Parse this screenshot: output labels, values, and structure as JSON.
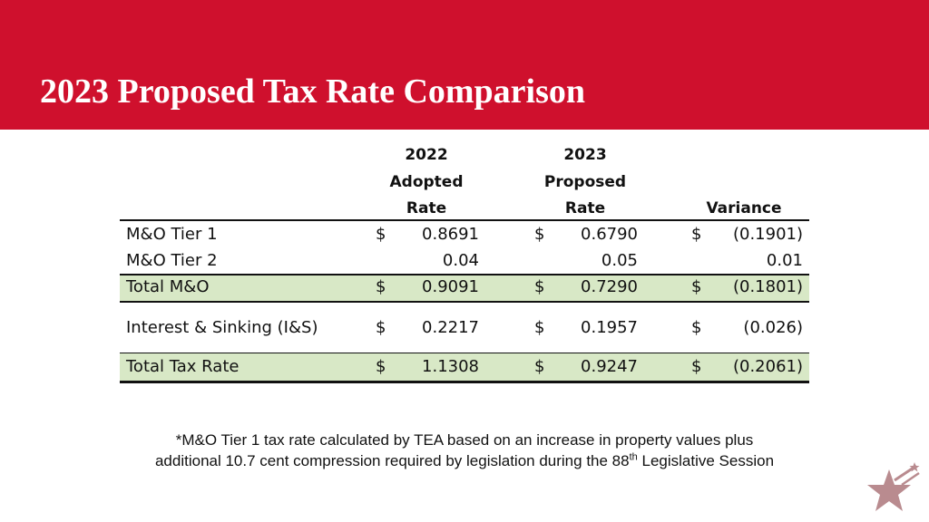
{
  "title": "2023 Proposed Tax Rate Comparison",
  "table": {
    "headers": {
      "col_2022": [
        "2022",
        "Adopted",
        "Rate"
      ],
      "col_2023": [
        "2023",
        "Proposed",
        "Rate"
      ],
      "variance": "Variance"
    },
    "rows": [
      {
        "label": "M&O Tier 1",
        "v2022_cur": "$",
        "v2022": "0.8691",
        "v2023_cur": "$",
        "v2023": "0.6790",
        "var_cur": "$",
        "var": "(0.1901)"
      },
      {
        "label": "M&O Tier 2",
        "v2022_cur": "",
        "v2022": "0.04",
        "v2023_cur": "",
        "v2023": "0.05",
        "var_cur": "",
        "var": "0.01"
      },
      {
        "label": "Total M&O",
        "v2022_cur": "$",
        "v2022": "0.9091",
        "v2023_cur": "$",
        "v2023": "0.7290",
        "var_cur": "$",
        "var": "(0.1801)"
      },
      {
        "label": "Interest & Sinking (I&S)",
        "v2022_cur": "$",
        "v2022": "0.2217",
        "v2023_cur": "$",
        "v2023": "0.1957",
        "var_cur": "$",
        "var": "(0.026)"
      },
      {
        "label": "Total Tax Rate",
        "v2022_cur": "$",
        "v2022": "1.1308",
        "v2023_cur": "$",
        "v2023": "0.9247",
        "var_cur": "$",
        "var": "(0.2061)"
      }
    ]
  },
  "footnote": {
    "line1": "*M&O Tier 1 tax rate calculated by TEA based on an increase in property values plus",
    "line2_pre": "additional 10.7 cent compression required by legislation during the 88",
    "line2_sup": "th",
    "line2_post": " Legislative Session"
  },
  "colors": {
    "banner": "#cf102d",
    "highlight": "#d8e8c6",
    "logo": "#b98b8f"
  },
  "logo_icon": "star-icon"
}
